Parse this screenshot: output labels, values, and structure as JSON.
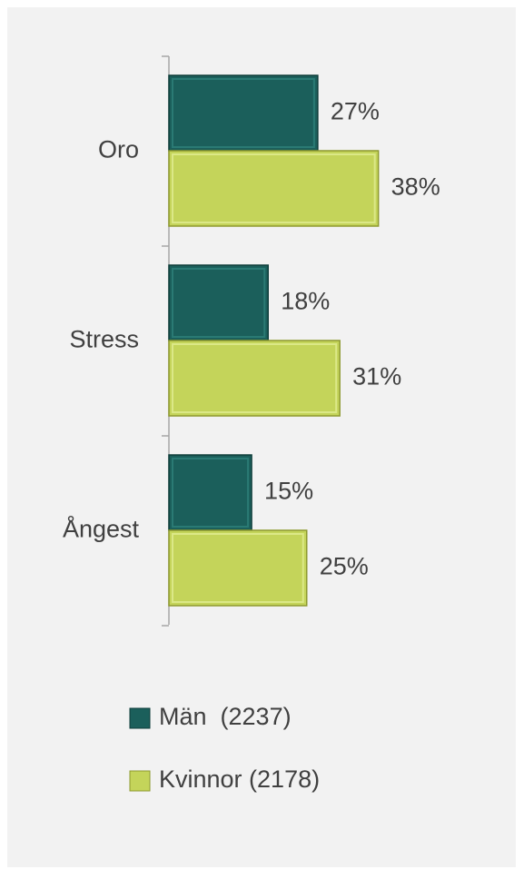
{
  "chart_data": {
    "type": "bar",
    "orientation": "horizontal",
    "categories": [
      "Oro",
      "Stress",
      "Ångest"
    ],
    "series": [
      {
        "name": "Män  (2237)",
        "color": "#1b5f5b",
        "values": [
          27,
          18,
          15
        ],
        "value_labels": [
          "27%",
          "18%",
          "15%"
        ]
      },
      {
        "name": "Kvinnor (2178)",
        "color": "#c4d45a",
        "values": [
          38,
          31,
          25
        ],
        "value_labels": [
          "38%",
          "31%",
          "25%"
        ]
      }
    ]
  }
}
